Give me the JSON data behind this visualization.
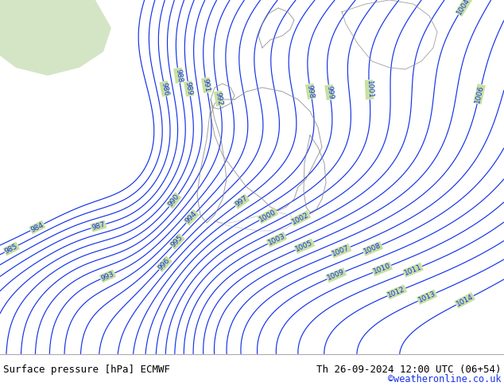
{
  "title_left": "Surface pressure [hPa] ECMWF",
  "title_right": "Th 26-09-2024 12:00 UTC (06+54)",
  "credit": "©weatheronline.co.uk",
  "bg_color": "#c8e0a0",
  "line_color": "#1432e8",
  "text_color": "#000000",
  "credit_color": "#1432e8",
  "bottom_bar_color": "#ffffff",
  "figsize": [
    6.34,
    4.9
  ],
  "dpi": 100,
  "pmin": 984,
  "pmax": 1014,
  "label_fontsize": 6.5
}
